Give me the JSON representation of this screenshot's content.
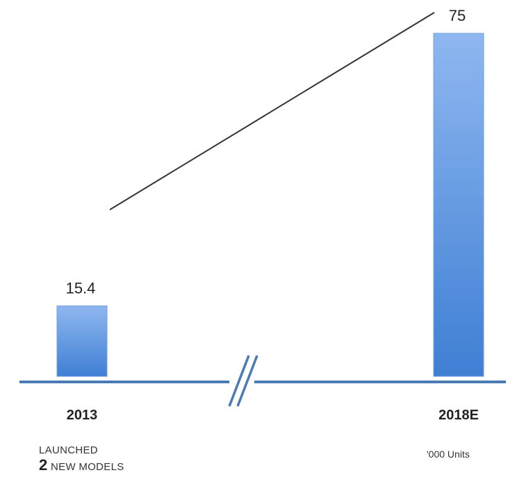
{
  "chart_data": {
    "type": "bar",
    "categories": [
      "2013",
      "2018E"
    ],
    "values": [
      15.4,
      75
    ],
    "value_labels": [
      "15.4",
      "75"
    ],
    "ylim": [
      0,
      75
    ],
    "unit_note": "'000 Units",
    "grid": false,
    "axis_break": true,
    "colors": {
      "bar_top": "#8fb7f0",
      "bar_bottom": "#3f7fd4",
      "axis": "#4a7bb5",
      "trend_line": "#333333"
    }
  },
  "annotation": {
    "line1": "LAUNCHED",
    "number": "2",
    "line2": "NEW MODELS"
  }
}
